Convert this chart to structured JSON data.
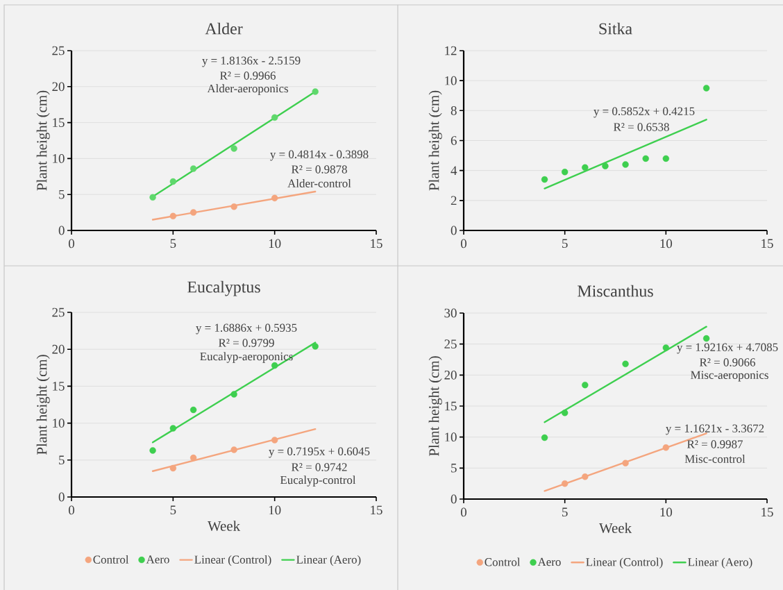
{
  "chart_data": [
    {
      "type": "scatter",
      "title": "Alder",
      "ylabel": "Plant height (cm)",
      "xlim": [
        0,
        15
      ],
      "xticks": [
        0,
        5,
        10,
        15
      ],
      "ylim": [
        0,
        25
      ],
      "yticks": [
        0,
        5,
        10,
        15,
        20,
        25
      ],
      "grid": "y",
      "series": [
        {
          "marker": "circle",
          "color": "#f4a57e",
          "x": [
            5,
            6,
            8,
            10
          ],
          "values": [
            2.0,
            2.5,
            3.3,
            4.5
          ]
        },
        {
          "marker": "circle",
          "color": "#5fd86c",
          "x": [
            4,
            5,
            6,
            8,
            10,
            12
          ],
          "values": [
            4.6,
            6.8,
            8.6,
            11.4,
            15.7,
            19.3
          ]
        },
        {
          "type": "line",
          "marker": "none",
          "color": "#f4a57e",
          "x": [
            4,
            12
          ],
          "values": [
            1.5,
            5.4
          ]
        },
        {
          "type": "line",
          "marker": "none",
          "color": "#3ecf4f",
          "x": [
            4,
            12
          ],
          "values": [
            4.7,
            19.3
          ]
        }
      ],
      "annotations": [
        "y = 1.8136x - 2.5159",
        "R² = 0.9966",
        "Alder-aeroponics",
        "y = 0.4814x - 0.3898",
        "R² = 0.9878",
        "Alder-control"
      ]
    },
    {
      "type": "scatter",
      "title": "Sitka",
      "ylabel": "Plant height (cm)",
      "xlim": [
        0,
        15
      ],
      "xticks": [
        0,
        5,
        10,
        15
      ],
      "ylim": [
        0,
        12
      ],
      "yticks": [
        0,
        2,
        4,
        6,
        8,
        10,
        12
      ],
      "grid": "y",
      "series": [
        {
          "marker": "circle",
          "color": "#3ecf4f",
          "x": [
            4,
            5,
            6,
            7,
            8,
            9,
            10,
            12
          ],
          "values": [
            3.4,
            3.9,
            4.2,
            4.3,
            4.4,
            4.8,
            4.8,
            9.5
          ]
        },
        {
          "type": "line",
          "marker": "none",
          "color": "#3ecf4f",
          "x": [
            4,
            12
          ],
          "values": [
            2.8,
            7.4
          ]
        }
      ],
      "annotations": [
        "y = 0.5852x + 0.4215",
        "R² = 0.6538"
      ]
    },
    {
      "type": "scatter",
      "title": "Eucalyptus",
      "xlabel": "Week",
      "ylabel": "Plant height (cm)",
      "xlim": [
        0,
        15
      ],
      "xticks": [
        0,
        5,
        10,
        15
      ],
      "ylim": [
        0,
        25
      ],
      "yticks": [
        0,
        5,
        10,
        15,
        20,
        25
      ],
      "grid": "y",
      "legend": "bottom",
      "series": [
        {
          "marker": "circle",
          "name": "Control",
          "color": "#f4a57e",
          "x": [
            5,
            6,
            8,
            10
          ],
          "values": [
            3.9,
            5.3,
            6.4,
            7.7
          ]
        },
        {
          "marker": "circle",
          "name": "Aero",
          "color": "#3ecf4f",
          "x": [
            4,
            5,
            6,
            8,
            10,
            12
          ],
          "values": [
            6.3,
            9.3,
            11.8,
            13.9,
            17.8,
            20.4
          ]
        },
        {
          "type": "line",
          "marker": "none",
          "name": "Linear (Control)",
          "color": "#f4a57e",
          "x": [
            4,
            12
          ],
          "values": [
            3.5,
            9.2
          ]
        },
        {
          "type": "line",
          "marker": "none",
          "name": "Linear (Aero)",
          "color": "#3ecf4f",
          "x": [
            4,
            12
          ],
          "values": [
            7.4,
            20.9
          ]
        }
      ],
      "annotations": [
        "y = 1.6886x + 0.5935",
        "R² = 0.9799",
        "Eucalyp-aeroponics",
        "y = 0.7195x + 0.6045",
        "R² = 0.9742",
        "Eucalyp-control"
      ]
    },
    {
      "type": "scatter",
      "title": "Miscanthus",
      "xlabel": "Week",
      "ylabel": "Plant height (cm)",
      "xlim": [
        0,
        15
      ],
      "xticks": [
        0,
        5,
        10,
        15
      ],
      "ylim": [
        0,
        30
      ],
      "yticks": [
        0,
        5,
        10,
        15,
        20,
        25,
        30
      ],
      "grid": "y",
      "legend": "bottom",
      "series": [
        {
          "marker": "circle",
          "name": "Control",
          "color": "#f4a57e",
          "x": [
            5,
            6,
            8,
            10
          ],
          "values": [
            2.5,
            3.6,
            5.8,
            8.3
          ]
        },
        {
          "marker": "circle",
          "name": "Aero",
          "color": "#3ecf4f",
          "x": [
            4,
            5,
            6,
            8,
            10,
            12
          ],
          "values": [
            9.9,
            13.9,
            18.4,
            21.8,
            24.4,
            25.9
          ]
        },
        {
          "type": "line",
          "marker": "none",
          "name": "Linear (Control)",
          "color": "#f4a57e",
          "x": [
            4,
            12
          ],
          "values": [
            1.3,
            10.6
          ]
        },
        {
          "type": "line",
          "marker": "none",
          "name": "Linear (Aero)",
          "color": "#3ecf4f",
          "x": [
            4,
            12
          ],
          "values": [
            12.4,
            27.8
          ]
        }
      ],
      "annotations": [
        "y = 1.9216x + 4.7085",
        "R² = 0.9066",
        "Misc-aeroponics",
        "y = 1.1621x - 3.3672",
        "R² = 0.9987",
        "Misc-control"
      ]
    }
  ]
}
